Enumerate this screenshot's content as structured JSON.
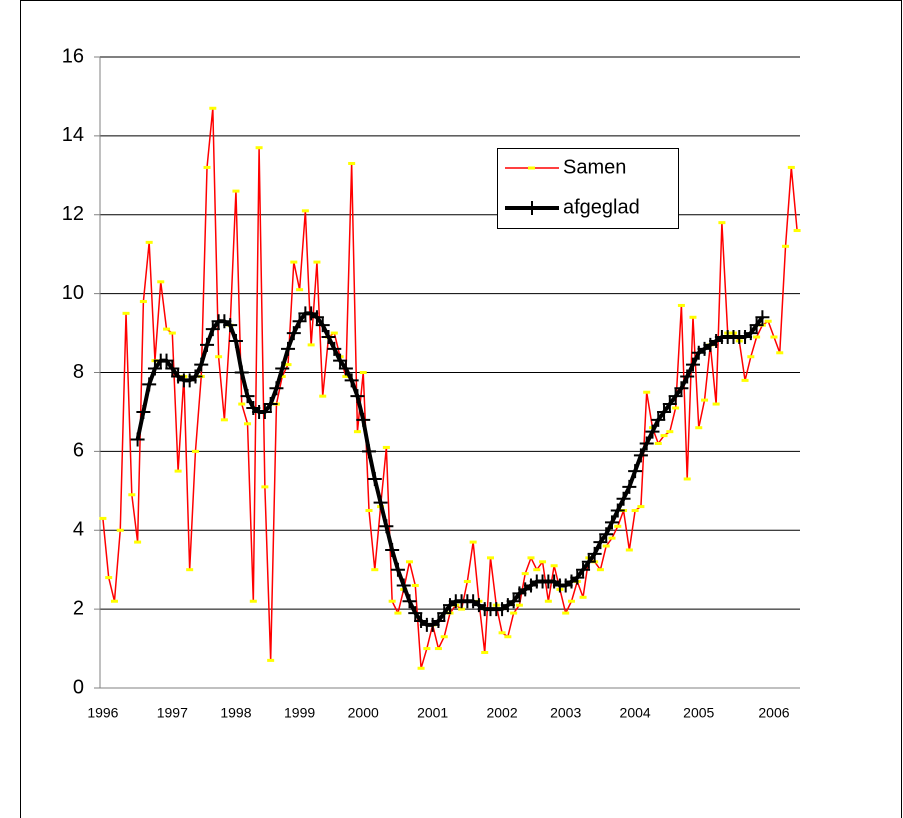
{
  "chart_data": {
    "type": "line",
    "categories": [
      "1996",
      null,
      null,
      null,
      null,
      null,
      null,
      null,
      null,
      null,
      null,
      null,
      "1997",
      null,
      null,
      null,
      null,
      null,
      null,
      null,
      null,
      null,
      null,
      "1998",
      null,
      null,
      null,
      null,
      null,
      null,
      null,
      null,
      null,
      null,
      "1999",
      null,
      null,
      null,
      null,
      null,
      null,
      null,
      null,
      null,
      null,
      "2000",
      null,
      null,
      null,
      null,
      null,
      null,
      null,
      null,
      null,
      null,
      null,
      "2001",
      null,
      null,
      null,
      null,
      null,
      null,
      null,
      null,
      null,
      null,
      null,
      "2002",
      null,
      null,
      null,
      null,
      null,
      null,
      null,
      null,
      null,
      null,
      "2003",
      null,
      null,
      null,
      null,
      null,
      null,
      null,
      null,
      null,
      null,
      null,
      "2004",
      null,
      null,
      null,
      null,
      null,
      null,
      null,
      null,
      null,
      null,
      "2005",
      null,
      null,
      null,
      null,
      null,
      null,
      null,
      null,
      null,
      null,
      null,
      null,
      "2006",
      null,
      null,
      null,
      null
    ],
    "series": [
      {
        "name": "Samen",
        "color": "#ff0000",
        "marker": "dash",
        "marker_color": "#ffff00",
        "values": [
          4.3,
          2.8,
          2.2,
          4.0,
          9.5,
          4.9,
          3.7,
          9.8,
          11.3,
          8.3,
          10.3,
          9.1,
          9.0,
          5.5,
          7.9,
          3.0,
          6.0,
          7.9,
          13.2,
          14.7,
          8.4,
          6.8,
          9.2,
          12.6,
          7.2,
          6.7,
          2.2,
          13.7,
          5.1,
          0.7,
          7.2,
          7.9,
          8.2,
          10.8,
          10.1,
          12.1,
          8.7,
          10.8,
          7.4,
          8.9,
          9.0,
          8.4,
          7.9,
          13.3,
          6.5,
          8.0,
          4.5,
          3.0,
          4.6,
          6.1,
          2.2,
          1.9,
          2.5,
          3.2,
          2.6,
          0.5,
          1.0,
          1.6,
          1.0,
          1.3,
          1.9,
          2.1,
          2.0,
          2.7,
          3.7,
          2.2,
          0.9,
          3.3,
          2.1,
          1.4,
          1.3,
          1.9,
          2.1,
          2.9,
          3.3,
          3.0,
          3.2,
          2.2,
          3.1,
          2.5,
          1.9,
          2.2,
          2.7,
          2.3,
          3.3,
          3.2,
          3.0,
          3.6,
          3.8,
          4.1,
          4.5,
          3.5,
          4.5,
          4.6,
          7.5,
          6.6,
          6.2,
          6.4,
          6.5,
          7.1,
          9.7,
          5.3,
          9.4,
          6.6,
          7.3,
          8.7,
          7.2,
          11.8,
          9.0,
          9.0,
          8.8,
          7.8,
          8.4,
          8.9,
          9.2,
          9.3,
          8.9,
          8.5,
          11.2,
          13.2,
          11.6
        ]
      },
      {
        "name": "afgeglad",
        "color": "#000000",
        "marker": "plus",
        "marker_color": "#000000",
        "values": [
          null,
          null,
          null,
          null,
          null,
          null,
          6.3,
          7.0,
          7.7,
          8.1,
          8.3,
          8.3,
          8.1,
          7.9,
          7.8,
          7.8,
          7.9,
          8.2,
          8.7,
          9.1,
          9.3,
          9.3,
          9.2,
          8.8,
          8.0,
          7.4,
          7.1,
          7.0,
          7.0,
          7.2,
          7.6,
          8.1,
          8.6,
          9.0,
          9.3,
          9.5,
          9.5,
          9.4,
          9.2,
          8.9,
          8.6,
          8.3,
          8.1,
          7.8,
          7.4,
          6.8,
          6.0,
          5.3,
          4.7,
          4.1,
          3.5,
          3.0,
          2.6,
          2.2,
          1.9,
          1.7,
          1.6,
          1.6,
          1.7,
          1.9,
          2.1,
          2.2,
          2.2,
          2.2,
          2.2,
          2.1,
          2.0,
          2.0,
          2.0,
          2.0,
          2.1,
          2.2,
          2.4,
          2.5,
          2.6,
          2.7,
          2.7,
          2.7,
          2.7,
          2.6,
          2.6,
          2.7,
          2.8,
          3.0,
          3.2,
          3.4,
          3.7,
          3.9,
          4.2,
          4.5,
          4.8,
          5.1,
          5.5,
          5.9,
          6.2,
          6.5,
          6.8,
          7.0,
          7.2,
          7.4,
          7.6,
          7.9,
          8.2,
          8.5,
          8.6,
          8.7,
          8.8,
          8.9,
          8.9,
          8.9,
          8.9,
          8.9,
          9.0,
          9.2,
          9.4,
          null,
          null,
          null,
          null,
          null,
          null
        ]
      }
    ],
    "ylim": [
      0,
      16
    ],
    "yticks": [
      0,
      2,
      4,
      6,
      8,
      10,
      12,
      14,
      16
    ],
    "grid": true,
    "legend": "upper right"
  }
}
